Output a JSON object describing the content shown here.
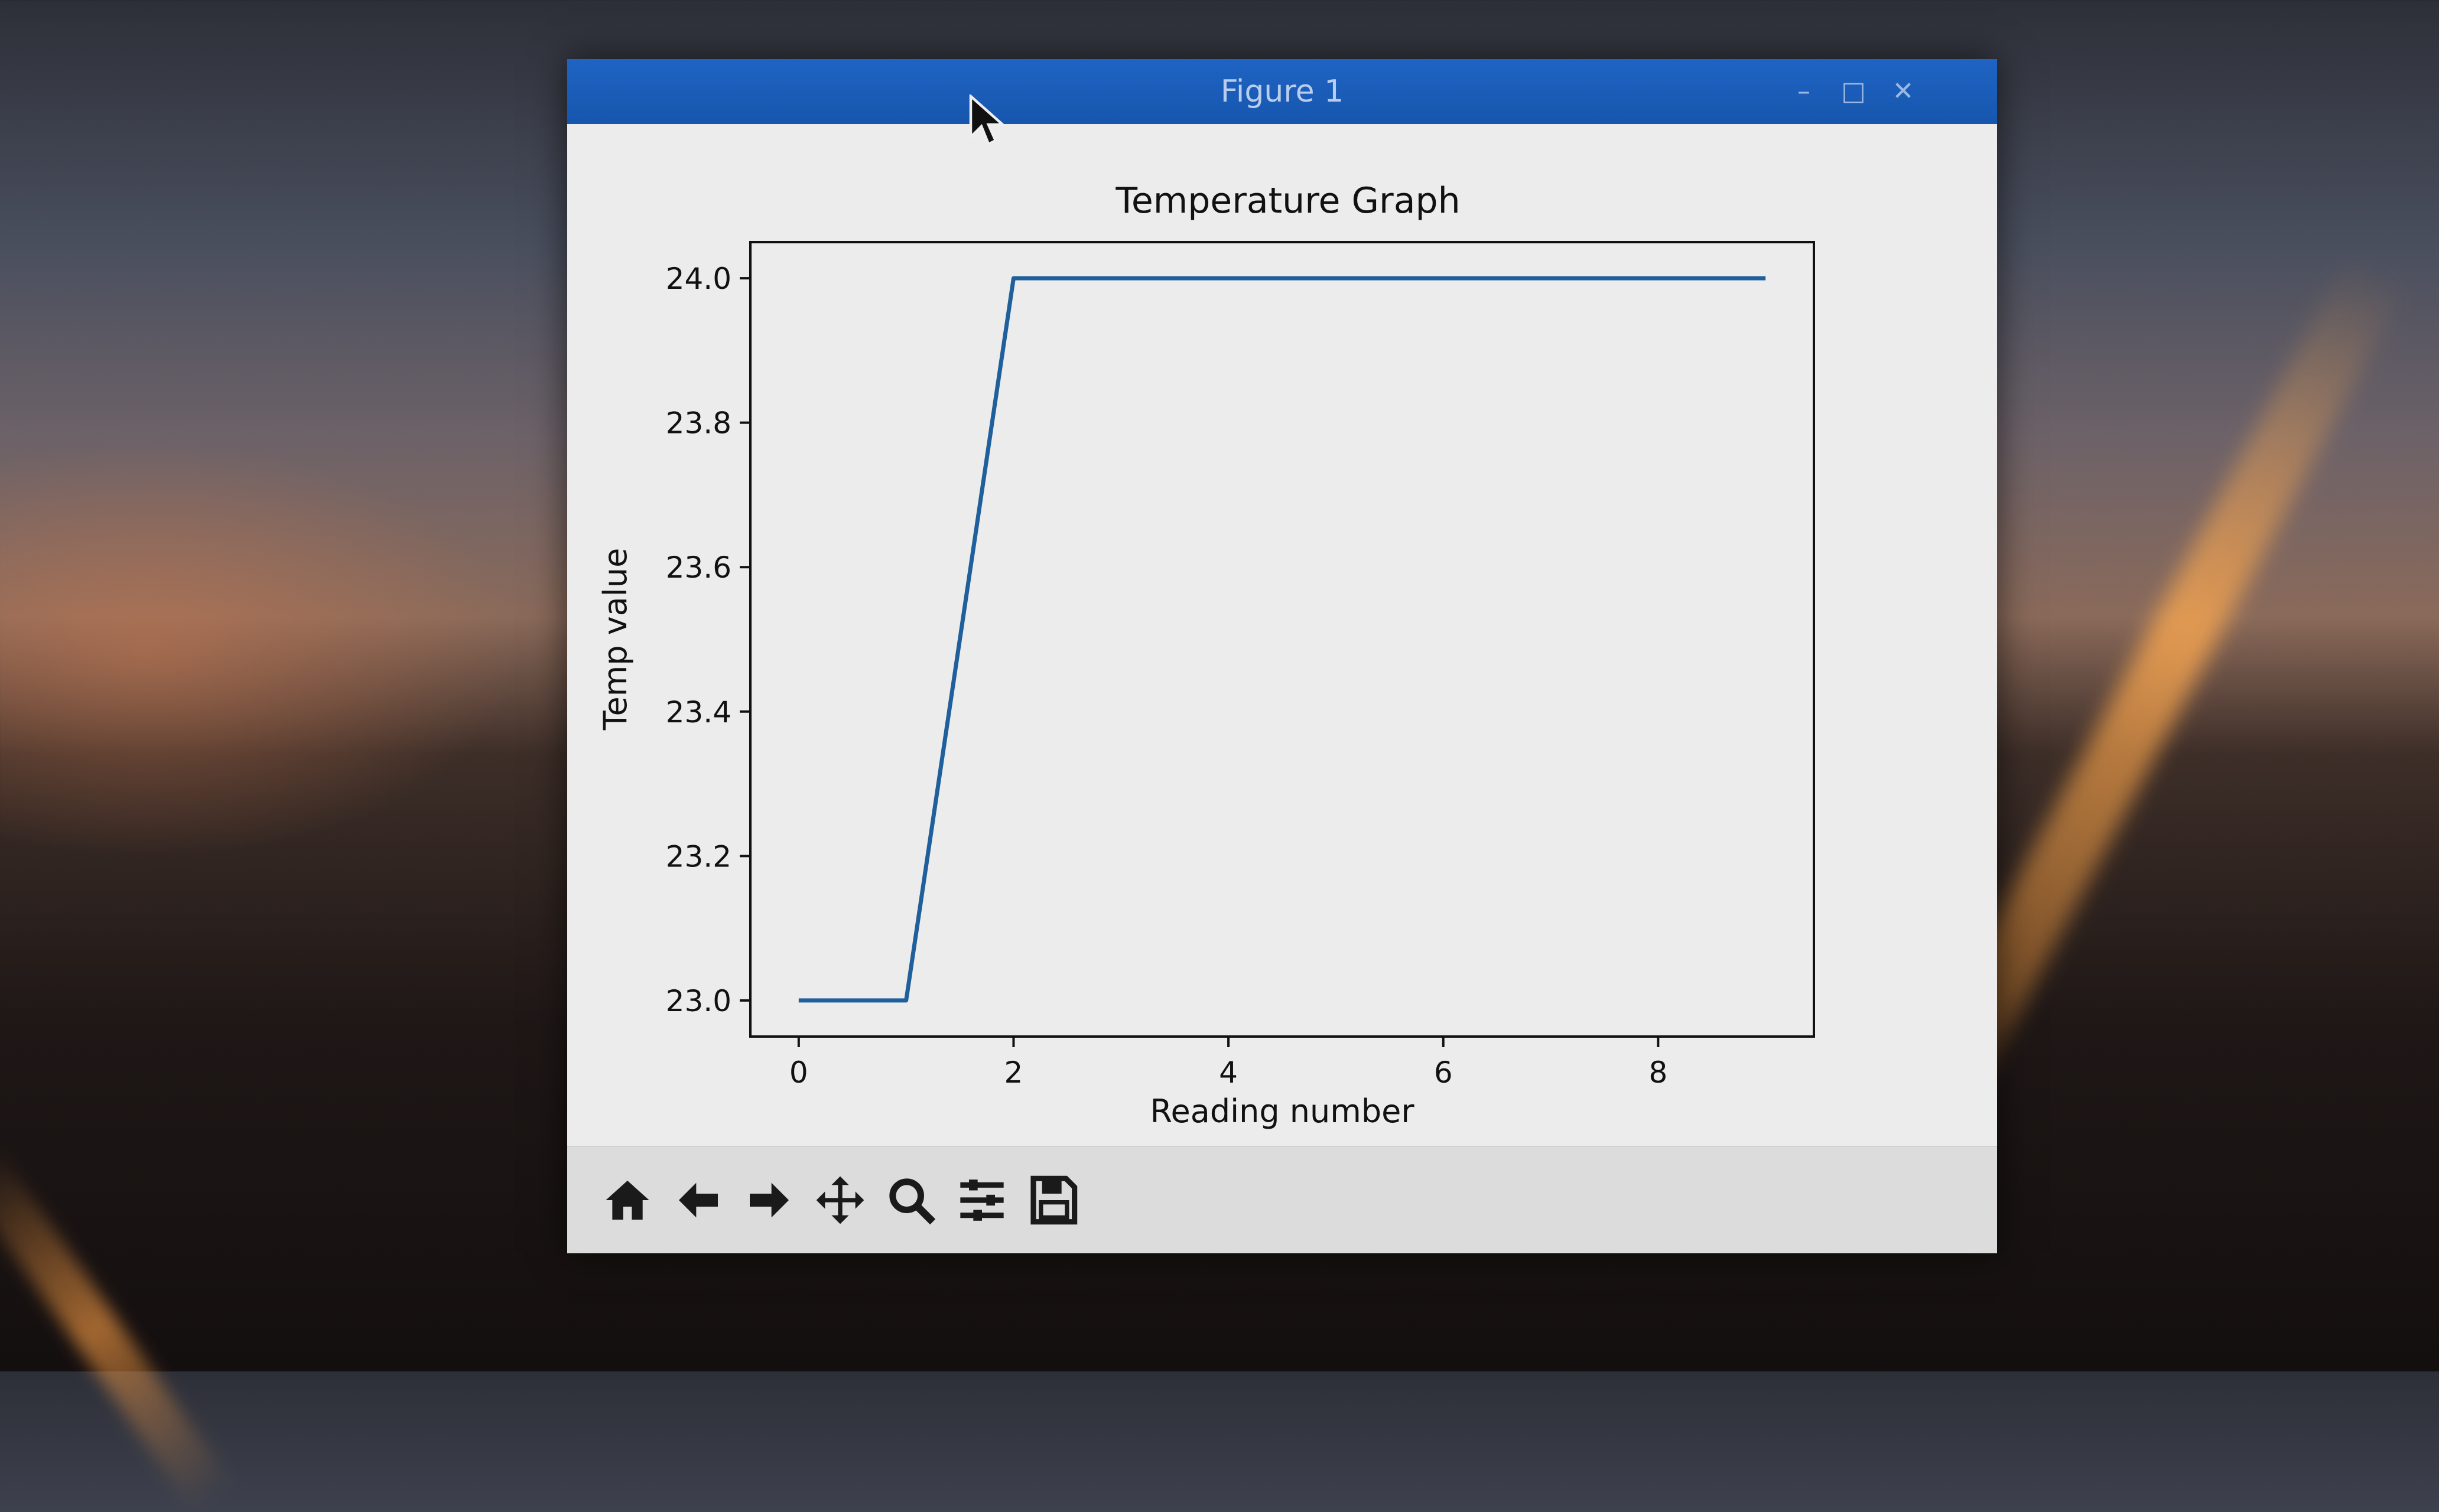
{
  "window": {
    "title": "Figure 1",
    "accent_color": "#1f64c4",
    "controls": [
      "minimize-icon",
      "maximize-icon",
      "close-icon"
    ]
  },
  "toolbar": {
    "tools": [
      "home-icon",
      "back-arrow-icon",
      "forward-arrow-icon",
      "pan-icon",
      "zoom-icon",
      "configure-subplots-icon",
      "save-icon"
    ]
  },
  "chart_data": {
    "type": "line",
    "title": "Temperature Graph",
    "xlabel": "Reading number",
    "ylabel": "Temp value",
    "x": [
      0,
      1,
      2,
      3,
      4,
      5,
      6,
      7,
      8,
      9
    ],
    "series": [
      {
        "values": [
          23.0,
          23.0,
          24.0,
          24.0,
          24.0,
          24.0,
          24.0,
          24.0,
          24.0,
          24.0
        ],
        "color": "#1f5f9c"
      }
    ],
    "xlim": [
      -0.45,
      9.45
    ],
    "ylim": [
      22.95,
      24.05
    ],
    "xticks": [
      0,
      2,
      4,
      6,
      8
    ],
    "xtick_labels": [
      "0",
      "2",
      "4",
      "6",
      "8"
    ],
    "yticks": [
      23.0,
      23.2,
      23.4,
      23.6,
      23.8,
      24.0
    ],
    "ytick_labels": [
      "23.0",
      "23.2",
      "23.4",
      "23.6",
      "23.8",
      "24.0"
    ],
    "grid": false,
    "legend": "none"
  }
}
